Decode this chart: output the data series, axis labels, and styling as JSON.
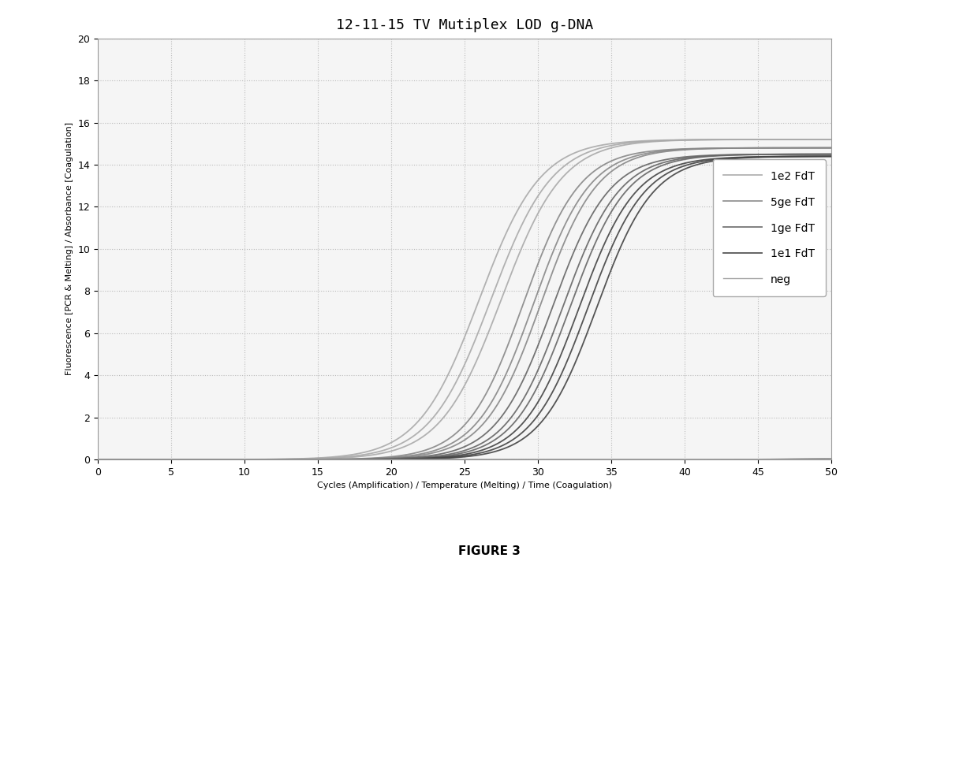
{
  "title": "12-11-15 TV Mutiplex LOD g-DNA",
  "xlabel": "Cycles (Amplification) / Temperature (Melting) / Time (Coagulation)",
  "ylabel": "Fluorescence [PCR & Melting] / Absorbance [Coagulation]",
  "xlim": [
    0,
    50
  ],
  "ylim": [
    0,
    20
  ],
  "xticks": [
    0,
    5,
    10,
    15,
    20,
    25,
    30,
    35,
    40,
    45,
    50
  ],
  "yticks": [
    0,
    2,
    4,
    6,
    8,
    10,
    12,
    14,
    16,
    18,
    20
  ],
  "figure3_label": "FIGURE 3",
  "series": [
    {
      "label": "1e2 FdT",
      "midpoints": [
        26.0,
        26.8,
        27.5
      ],
      "steepness": 0.48,
      "ymax": 15.2,
      "color": "#aaaaaa",
      "linewidth": 1.3
    },
    {
      "label": "5ge FdT",
      "midpoints": [
        29.0,
        29.7,
        30.2
      ],
      "steepness": 0.52,
      "ymax": 14.8,
      "color": "#888888",
      "linewidth": 1.3
    },
    {
      "label": "1ge FdT",
      "midpoints": [
        31.0,
        31.7,
        32.2
      ],
      "steepness": 0.52,
      "ymax": 14.5,
      "color": "#666666",
      "linewidth": 1.3
    },
    {
      "label": "1e1 FdT",
      "midpoints": [
        32.8,
        33.4,
        34.0
      ],
      "steepness": 0.52,
      "ymax": 14.4,
      "color": "#444444",
      "linewidth": 1.3
    },
    {
      "label": "neg",
      "midpoints": [
        48.0,
        49.0,
        50.0
      ],
      "steepness": 0.4,
      "ymax": 0.08,
      "color": "#999999",
      "linewidth": 1.0
    }
  ],
  "background_color": "#f5f5f5",
  "plot_background": "#f5f5f5",
  "grid_color": "#bbbbbb",
  "title_fontsize": 13,
  "axis_label_fontsize": 8,
  "tick_fontsize": 9,
  "legend_fontsize": 10
}
